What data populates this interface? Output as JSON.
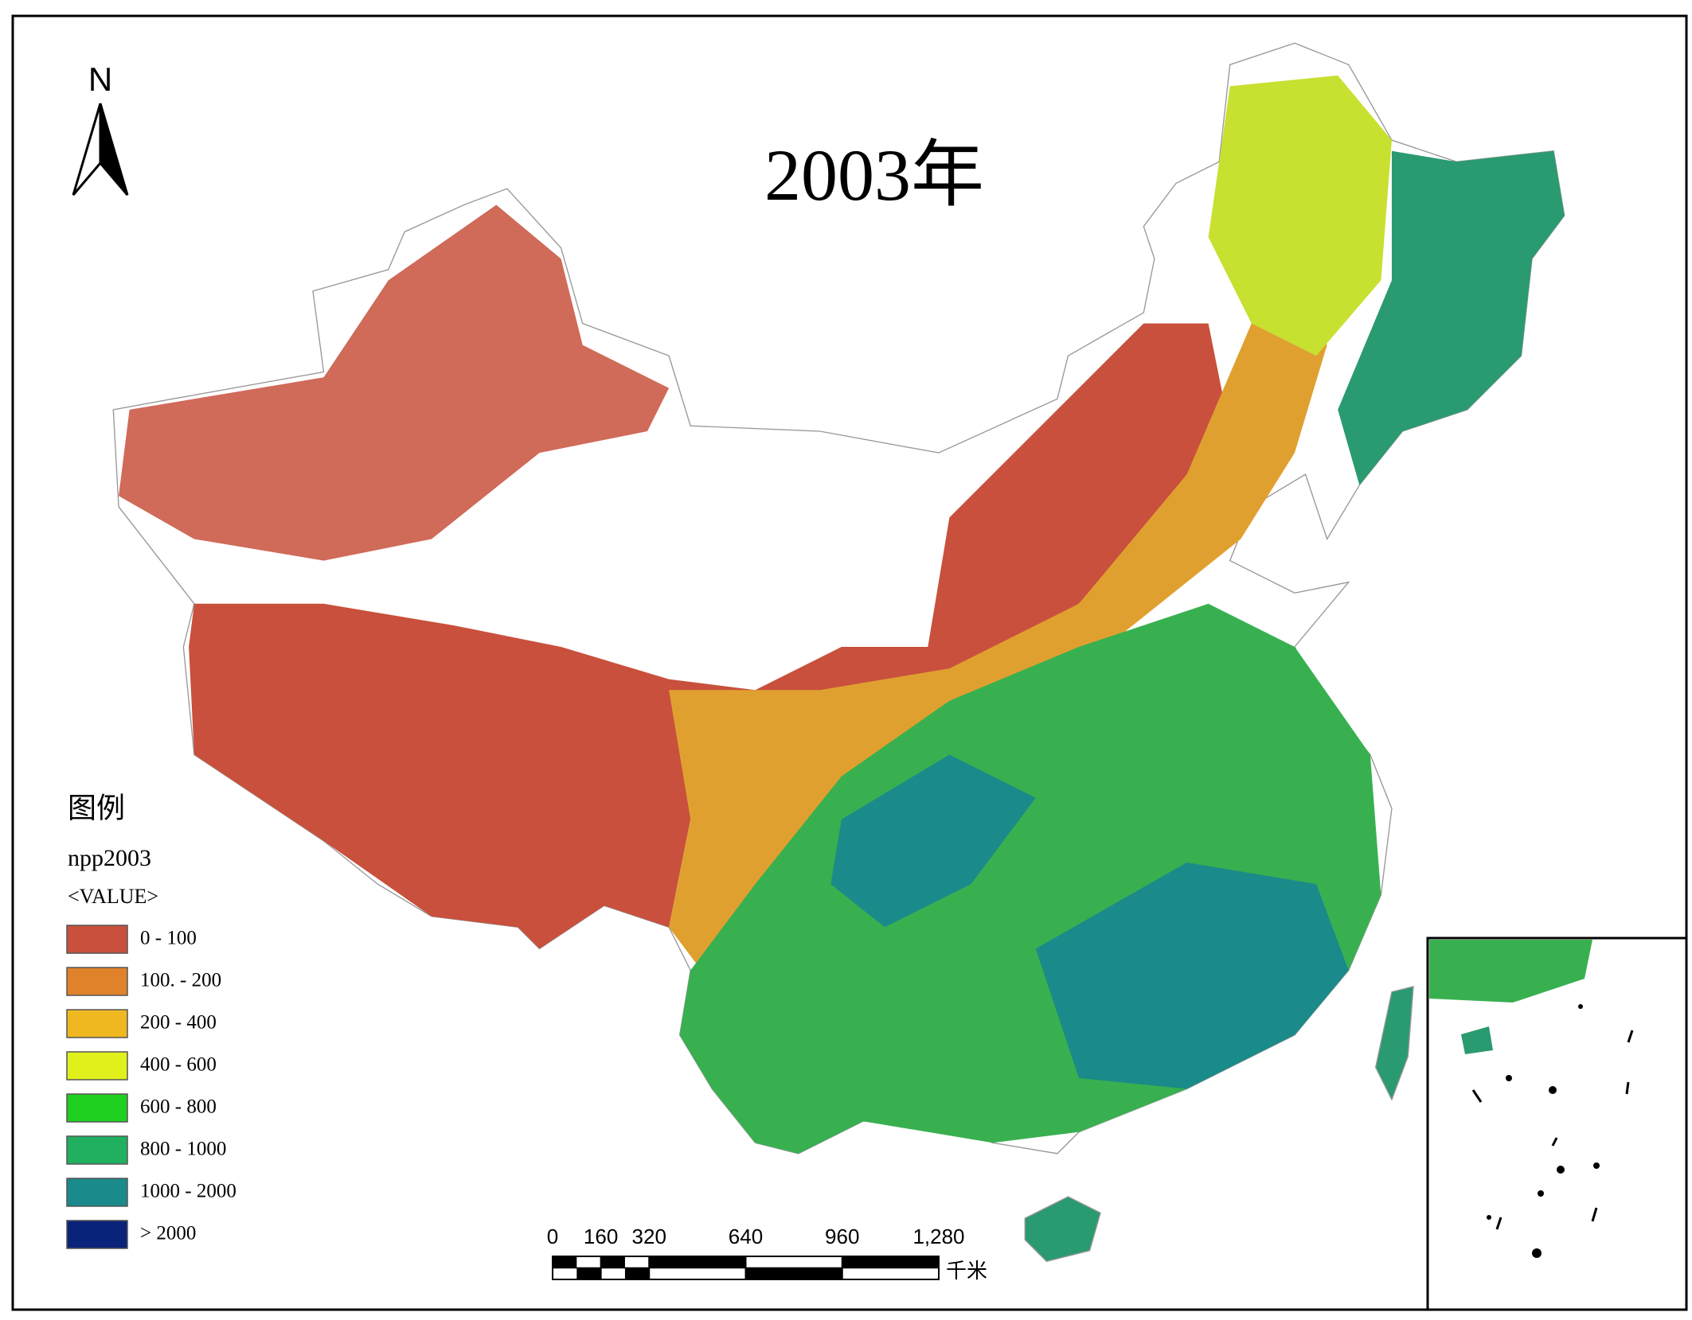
{
  "title": "2003年",
  "north_arrow": "N",
  "legend": {
    "title": "图例",
    "layer": "npp2003",
    "field": "<VALUE>",
    "items": [
      {
        "label": "0 - 100",
        "color": "#c8503c"
      },
      {
        "label": "100. - 200",
        "color": "#e0822a"
      },
      {
        "label": "200 - 400",
        "color": "#f0b820"
      },
      {
        "label": "400 - 600",
        "color": "#e0f01a"
      },
      {
        "label": "600 - 800",
        "color": "#20d020"
      },
      {
        "label": "800 - 1000",
        "color": "#20b060"
      },
      {
        "label": "1000 - 2000",
        "color": "#1a8a8a"
      },
      {
        "label": "> 2000",
        "color": "#0a237a"
      }
    ]
  },
  "scale_bar": {
    "ticks": [
      0,
      160,
      320,
      640,
      960,
      {
        "value": 1280,
        "label": "1,280"
      }
    ],
    "unit": "千米"
  }
}
